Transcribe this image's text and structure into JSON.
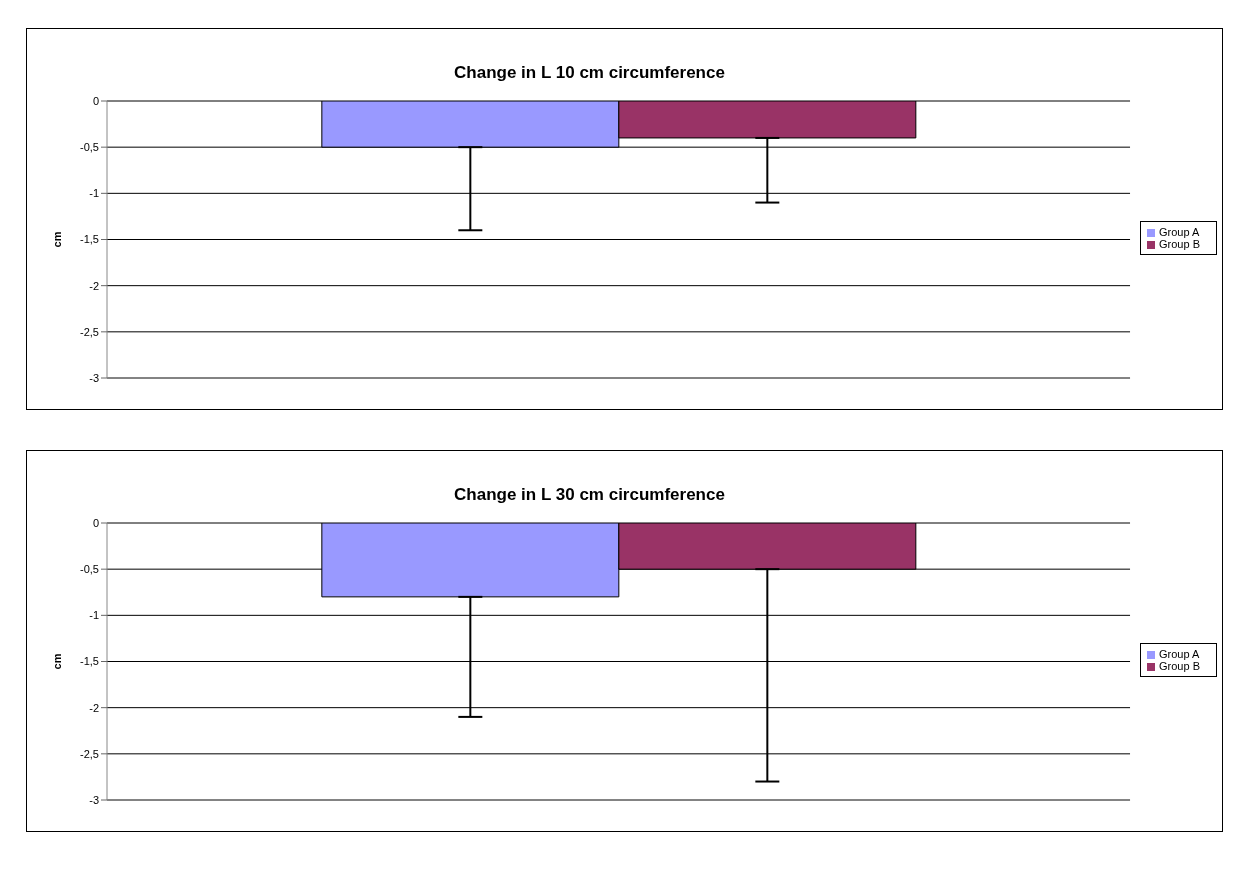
{
  "chart_data": [
    {
      "type": "bar",
      "title": "Change in L 10 cm circumference",
      "ylabel": "cm",
      "categories": [
        null
      ],
      "series": [
        {
          "name": "Group A",
          "color": "#9999ff",
          "values": [
            -0.5
          ],
          "errors": [
            [
              -1.4,
              -0.5
            ]
          ]
        },
        {
          "name": "Group B",
          "color": "#993366",
          "values": [
            -0.4
          ],
          "errors": [
            [
              -1.1,
              -0.4
            ]
          ]
        }
      ],
      "ylim": [
        -3,
        0
      ],
      "yticks": [
        {
          "value": -3,
          "label": "-3"
        },
        {
          "value": -2.5,
          "label": "-2,5"
        },
        {
          "value": -2,
          "label": "-2"
        },
        {
          "value": -1.5,
          "label": "-1,5"
        },
        {
          "value": -1,
          "label": "-1"
        },
        {
          "value": -0.5,
          "label": "-0,5"
        },
        {
          "value": 0,
          "label": "0"
        }
      ],
      "grid": "y",
      "legend": "right"
    },
    {
      "type": "bar",
      "title": "Change in L 30 cm circumference",
      "ylabel": "cm",
      "categories": [
        null
      ],
      "series": [
        {
          "name": "Group A",
          "color": "#9999ff",
          "values": [
            -0.8
          ],
          "errors": [
            [
              -2.1,
              -0.8
            ]
          ]
        },
        {
          "name": "Group B",
          "color": "#993366",
          "values": [
            -0.5
          ],
          "errors": [
            [
              -2.8,
              -0.5
            ]
          ]
        }
      ],
      "ylim": [
        -3,
        0
      ],
      "yticks": [
        {
          "value": -3,
          "label": "-3"
        },
        {
          "value": -2.5,
          "label": "-2,5"
        },
        {
          "value": -2,
          "label": "-2"
        },
        {
          "value": -1.5,
          "label": "-1,5"
        },
        {
          "value": -1,
          "label": "-1"
        },
        {
          "value": -0.5,
          "label": "-0,5"
        },
        {
          "value": 0,
          "label": "0"
        }
      ],
      "grid": "y",
      "legend": "right"
    }
  ]
}
